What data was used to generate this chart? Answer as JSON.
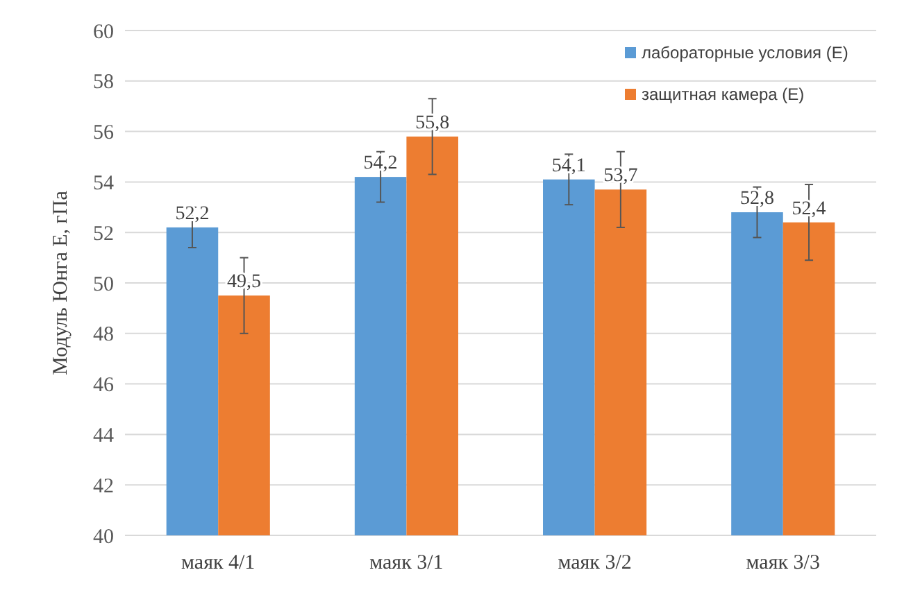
{
  "chart_data": {
    "type": "bar",
    "ylabel": "Модуль Юнга E, гПа",
    "categories": [
      "маяк 4/1",
      "маяк 3/1",
      "маяк 3/2",
      "маяк 3/3"
    ],
    "series": [
      {
        "name": "лабораторные условия (E)",
        "color": "#5b9bd5",
        "values": [
          52.2,
          54.2,
          54.1,
          52.8
        ],
        "errors": [
          0.8,
          1,
          1,
          1
        ],
        "value_labels": [
          "52,2",
          "54,2",
          "54,1",
          "52,8"
        ]
      },
      {
        "name": "защитная камера (E)",
        "color": "#ed7d31",
        "values": [
          49.5,
          55.8,
          53.7,
          52.4
        ],
        "errors": [
          1.5,
          1.5,
          1.5,
          1.5
        ],
        "value_labels": [
          "49,5",
          "55,8",
          "53,7",
          "52,4"
        ]
      }
    ],
    "ylim": [
      40,
      60
    ],
    "yticks": [
      40,
      42,
      44,
      46,
      48,
      50,
      52,
      54,
      56,
      58,
      60
    ],
    "grid": "y",
    "legend": "top right"
  }
}
